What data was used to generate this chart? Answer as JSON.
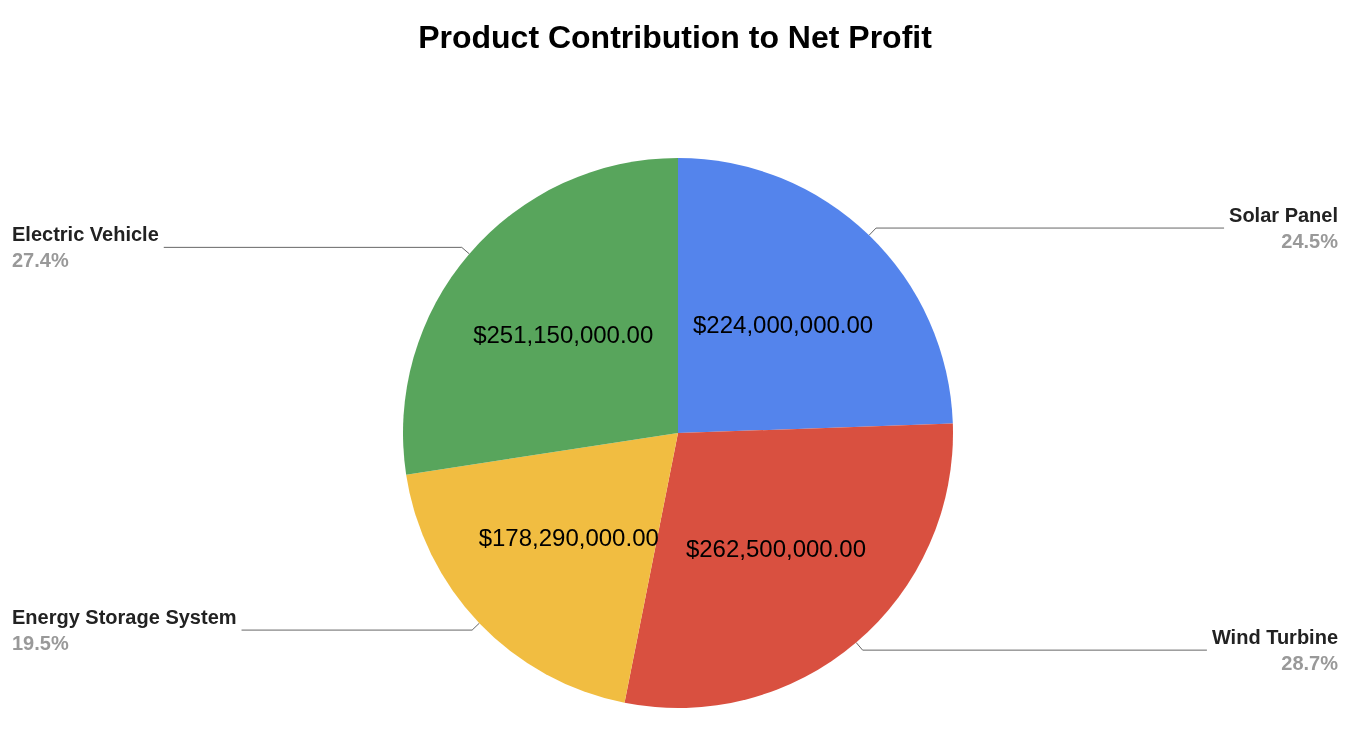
{
  "chart_data": {
    "type": "pie",
    "title": "Product Contribution to Net Profit",
    "categories": [
      "Solar Panel",
      "Wind Turbine",
      "Energy Storage System",
      "Electric Vehicle"
    ],
    "values": [
      224000000,
      262500000,
      178290000,
      251150000
    ],
    "value_labels": [
      "$224,000,000.00",
      "$262,500,000.00",
      "$178,290,000.00",
      "$251,150,000.00"
    ],
    "colors": [
      "#5484ec",
      "#d95040",
      "#f1bd41",
      "#58a55c"
    ],
    "annotations": [
      {
        "text": "24.5%",
        "x": "Solar Panel"
      },
      {
        "text": "28.7%",
        "x": "Wind Turbine"
      },
      {
        "text": "19.5%",
        "x": "Energy Storage System"
      },
      {
        "text": "27.4%",
        "x": "Electric Vehicle"
      }
    ],
    "legend": false
  }
}
